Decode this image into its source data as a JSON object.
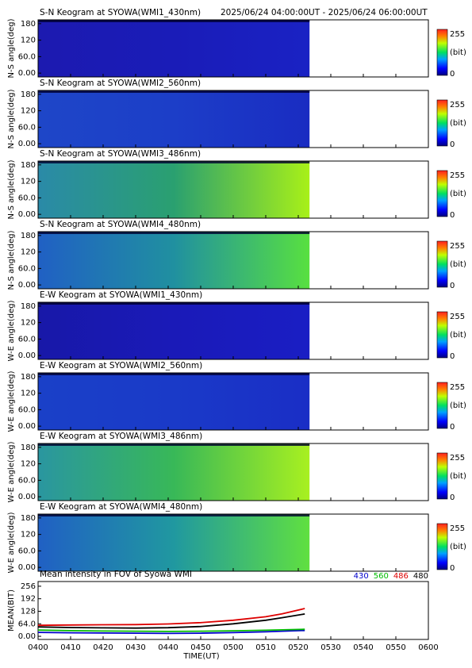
{
  "header": {
    "period": "2025/06/24 04:00:00UT - 2025/06/24 06:00:00UT"
  },
  "keograms": [
    {
      "title": "S-N Keogram at SYOWA(WMI1_430nm)",
      "ylabel": "N-S angle(deg)",
      "colors": [
        "#1c1ab0",
        "#1a1cb8",
        "#1a22c4"
      ]
    },
    {
      "title": "S-N Keogram at SYOWA(WMI2_560nm)",
      "ylabel": "N-S angle(deg)",
      "colors": [
        "#1e46c8",
        "#1c3ec8",
        "#1a2cc2"
      ]
    },
    {
      "title": "S-N Keogram at SYOWA(WMI3_486nm)",
      "ylabel": "N-S angle(deg)",
      "colors": [
        "#2a8aa8",
        "#2aa070",
        "#a8f018"
      ]
    },
    {
      "title": "S-N Keogram at SYOWA(WMI4_480nm)",
      "ylabel": "N-S angle(deg)",
      "colors": [
        "#2060c4",
        "#2090a0",
        "#58e040"
      ]
    },
    {
      "title": "E-W Keogram at SYOWA(WMI1_430nm)",
      "ylabel": "W-E angle(deg)",
      "colors": [
        "#1818a8",
        "#1a1ab8",
        "#1a1ec4"
      ]
    },
    {
      "title": "E-W Keogram at SYOWA(WMI2_560nm)",
      "ylabel": "W-E angle(deg)",
      "colors": [
        "#1a40c8",
        "#1a3ac8",
        "#1a2ec6"
      ]
    },
    {
      "title": "E-W Keogram at SYOWA(WMI3_486nm)",
      "ylabel": "W-E angle(deg)",
      "colors": [
        "#2a96a0",
        "#38b858",
        "#a8f020"
      ]
    },
    {
      "title": "E-W Keogram at SYOWA(WMI4_480nm)",
      "ylabel": "W-E angle(deg)",
      "colors": [
        "#2060c4",
        "#2098a0",
        "#60e040"
      ]
    }
  ],
  "keogram_axis": {
    "ylim": [
      -14,
      194
    ],
    "yticks": [
      180,
      120,
      {
        "value": 60,
        "label": "60.0"
      },
      {
        "value": 0,
        "label": "0.00"
      }
    ],
    "colorbar": {
      "max": 255,
      "unit": "(bit)",
      "min": 0
    }
  },
  "chart_data": {
    "type": "line",
    "title": "Mean intensity in FOV of Syowa WMI",
    "x_label": "TIME(UT)",
    "y_label": "MEAN(BIT)",
    "x": [
      0,
      10,
      20,
      30,
      40,
      50,
      60,
      70,
      75,
      82
    ],
    "xlim": [
      0,
      120
    ],
    "xticks": [
      {
        "value": 0,
        "label": "0400"
      },
      {
        "value": 10,
        "label": "0410"
      },
      {
        "value": 20,
        "label": "0420"
      },
      {
        "value": 30,
        "label": "0430"
      },
      {
        "value": 40,
        "label": "0440"
      },
      {
        "value": 50,
        "label": "0450"
      },
      {
        "value": 60,
        "label": "0500"
      },
      {
        "value": 70,
        "label": "0510"
      },
      {
        "value": 80,
        "label": "0520"
      },
      {
        "value": 90,
        "label": "0530"
      },
      {
        "value": 100,
        "label": "0540"
      },
      {
        "value": 110,
        "label": "0550"
      },
      {
        "value": 120,
        "label": "0600"
      }
    ],
    "ylim": [
      -16,
      280
    ],
    "yticks": [
      {
        "value": 0,
        "label": "0.00"
      },
      {
        "value": 64,
        "label": "64.0"
      },
      128,
      192,
      256
    ],
    "series": [
      {
        "name": "430",
        "color": "#0000cc",
        "values": [
          20,
          18,
          17,
          16,
          15,
          16,
          19,
          23,
          26,
          30
        ]
      },
      {
        "name": "560",
        "color": "#00bb00",
        "values": [
          32,
          29,
          27,
          26,
          25,
          26,
          28,
          31,
          33,
          36
        ]
      },
      {
        "name": "486",
        "color": "#dd0000",
        "values": [
          56,
          58,
          59,
          60,
          63,
          70,
          82,
          100,
          115,
          142
        ]
      },
      {
        "name": "480",
        "color": "#000000",
        "values": [
          48,
          45,
          43,
          42,
          44,
          50,
          64,
          82,
          95,
          114
        ]
      }
    ]
  }
}
